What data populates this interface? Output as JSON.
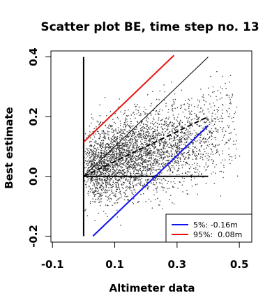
{
  "chart_data": {
    "type": "scatter",
    "title": "Scatter plot BE, time step no. 13",
    "xlabel": "Altimeter data",
    "ylabel": "Best estimate",
    "xlim": [
      -0.105,
      0.54
    ],
    "ylim": [
      -0.22,
      0.42
    ],
    "xticks": [
      -0.1,
      0.1,
      0.3,
      0.5
    ],
    "xtick_labels": [
      "-0.1",
      "0.1",
      "0.3",
      "0.5"
    ],
    "yticks": [
      -0.2,
      0.0,
      0.2,
      0.4
    ],
    "ytick_labels": [
      "-0.2",
      "0.0",
      "0.2",
      "0.4"
    ],
    "grid": false,
    "legend_position": "bottom-right",
    "colors": {
      "points": "#333333",
      "red": "#e8150e",
      "blue": "#1010f0",
      "black": "#000000"
    },
    "lines": [
      {
        "name": "",
        "style": "solid-thin",
        "color": "#000000",
        "x": [
          0.0,
          0.4
        ],
        "y": [
          0.0,
          0.4
        ]
      },
      {
        "name": "",
        "style": "dashed",
        "color": "#000000",
        "x": [
          0.0,
          0.4
        ],
        "y": [
          0.0,
          0.2
        ]
      },
      {
        "name": "",
        "style": "solid-thick",
        "color": "#000000",
        "x": [
          0.0,
          0.4
        ],
        "y": [
          0.0,
          0.0
        ]
      },
      {
        "name": "",
        "style": "solid-thick",
        "color": "#000000",
        "x": [
          0.0,
          0.0
        ],
        "y": [
          -0.2,
          0.4
        ]
      },
      {
        "name": "5%: -0.16m",
        "style": "solid",
        "color": "#1010f0",
        "x": [
          0.03,
          0.4
        ],
        "y": [
          -0.2,
          0.17
        ]
      },
      {
        "name": "95%:  0.08m",
        "style": "solid",
        "color": "#e8150e",
        "x": [
          0.0,
          0.29
        ],
        "y": [
          0.115,
          0.405
        ]
      }
    ],
    "legend": [
      {
        "label": "5%: -0.16m",
        "color": "#1010f0"
      },
      {
        "label": "95%:  0.08m",
        "color": "#e8150e"
      }
    ],
    "scatter": {
      "count": 3500,
      "x_min": 0.0,
      "x_mode": 0.04,
      "x_max": 0.52,
      "y_center": 0.02,
      "y_spread": 0.07,
      "y_min": -0.22,
      "y_max": 0.42
    }
  }
}
